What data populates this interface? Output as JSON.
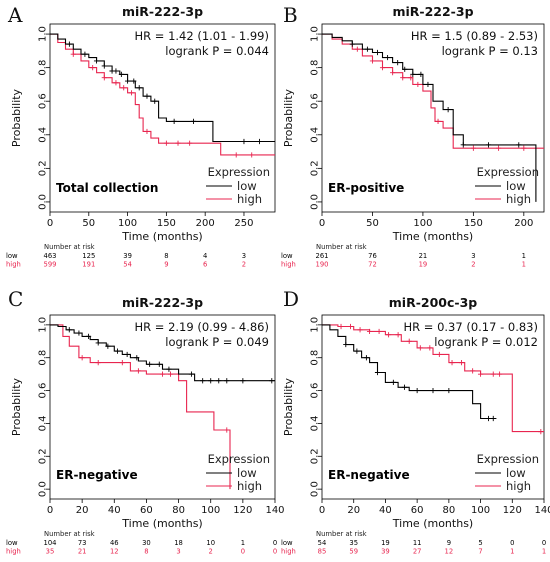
{
  "chart_data": [
    {
      "type": "line",
      "panel": "A",
      "title": "miR-222-3p",
      "hr_text": "HR = 1.42 (1.01 - 1.99)",
      "p_text": "logrank P = 0.044",
      "subset_label": "Total collection",
      "xlabel": "Time (months)",
      "ylabel": "Probability",
      "xlim": [
        0,
        290
      ],
      "ylim": [
        0,
        1
      ],
      "xticks": [
        0,
        50,
        100,
        150,
        200,
        250
      ],
      "yticks": [
        0.0,
        0.2,
        0.4,
        0.6,
        0.8,
        1.0
      ],
      "legend": {
        "title": "Expression",
        "position": "bottom-right"
      },
      "series": [
        {
          "name": "low",
          "color": "#000000",
          "points": [
            [
              0,
              1.0
            ],
            [
              10,
              0.97
            ],
            [
              20,
              0.94
            ],
            [
              30,
              0.91
            ],
            [
              40,
              0.88
            ],
            [
              50,
              0.86
            ],
            [
              60,
              0.84
            ],
            [
              70,
              0.81
            ],
            [
              80,
              0.78
            ],
            [
              90,
              0.76
            ],
            [
              100,
              0.72
            ],
            [
              110,
              0.68
            ],
            [
              120,
              0.63
            ],
            [
              130,
              0.6
            ],
            [
              140,
              0.5
            ],
            [
              150,
              0.48
            ],
            [
              210,
              0.48
            ],
            [
              210,
              0.36
            ],
            [
              290,
              0.36
            ]
          ],
          "censor_x": [
            25,
            45,
            60,
            70,
            80,
            85,
            92,
            100,
            108,
            115,
            125,
            135,
            160,
            185,
            250,
            270
          ]
        },
        {
          "name": "high",
          "color": "#e8254f",
          "points": [
            [
              0,
              1.0
            ],
            [
              10,
              0.95
            ],
            [
              20,
              0.91
            ],
            [
              30,
              0.88
            ],
            [
              40,
              0.84
            ],
            [
              50,
              0.8
            ],
            [
              60,
              0.77
            ],
            [
              70,
              0.74
            ],
            [
              80,
              0.71
            ],
            [
              90,
              0.68
            ],
            [
              100,
              0.65
            ],
            [
              110,
              0.58
            ],
            [
              115,
              0.5
            ],
            [
              120,
              0.42
            ],
            [
              130,
              0.38
            ],
            [
              140,
              0.35
            ],
            [
              200,
              0.35
            ],
            [
              220,
              0.28
            ],
            [
              290,
              0.28
            ]
          ],
          "censor_x": [
            30,
            55,
            70,
            85,
            95,
            105,
            125,
            150,
            165,
            180,
            240,
            260
          ]
        }
      ],
      "risk_table": {
        "header": "Number at risk",
        "times": [
          0,
          50,
          100,
          150,
          200,
          250
        ],
        "rows": [
          {
            "label": "low",
            "values": [
              463,
              125,
              39,
              8,
              4,
              3
            ]
          },
          {
            "label": "high",
            "values": [
              599,
              191,
              54,
              9,
              6,
              2
            ]
          }
        ]
      }
    },
    {
      "type": "line",
      "panel": "B",
      "title": "miR-222-3p",
      "hr_text": "HR = 1.5 (0.89 - 2.53)",
      "p_text": "logrank P = 0.13",
      "subset_label": "ER-positive",
      "xlabel": "Time (months)",
      "ylabel": "Probability",
      "xlim": [
        0,
        220
      ],
      "ylim": [
        0,
        1
      ],
      "xticks": [
        0,
        50,
        100,
        150,
        200
      ],
      "yticks": [
        0.0,
        0.2,
        0.4,
        0.6,
        0.8,
        1.0
      ],
      "legend": {
        "title": "Expression",
        "position": "bottom-right"
      },
      "series": [
        {
          "name": "low",
          "color": "#000000",
          "points": [
            [
              0,
              1.0
            ],
            [
              10,
              0.98
            ],
            [
              20,
              0.96
            ],
            [
              30,
              0.94
            ],
            [
              40,
              0.91
            ],
            [
              50,
              0.89
            ],
            [
              60,
              0.86
            ],
            [
              70,
              0.83
            ],
            [
              80,
              0.79
            ],
            [
              90,
              0.76
            ],
            [
              100,
              0.7
            ],
            [
              110,
              0.6
            ],
            [
              120,
              0.55
            ],
            [
              130,
              0.4
            ],
            [
              140,
              0.34
            ],
            [
              210,
              0.34
            ],
            [
              212,
              0.0
            ]
          ],
          "censor_x": [
            30,
            45,
            55,
            65,
            75,
            82,
            90,
            98,
            105,
            125,
            140,
            165,
            195
          ]
        },
        {
          "name": "high",
          "color": "#e8254f",
          "points": [
            [
              0,
              1.0
            ],
            [
              10,
              0.97
            ],
            [
              20,
              0.94
            ],
            [
              30,
              0.91
            ],
            [
              40,
              0.87
            ],
            [
              50,
              0.84
            ],
            [
              60,
              0.8
            ],
            [
              70,
              0.77
            ],
            [
              80,
              0.74
            ],
            [
              90,
              0.7
            ],
            [
              100,
              0.66
            ],
            [
              108,
              0.56
            ],
            [
              112,
              0.48
            ],
            [
              120,
              0.44
            ],
            [
              130,
              0.32
            ],
            [
              220,
              0.32
            ]
          ],
          "censor_x": [
            35,
            50,
            60,
            70,
            80,
            88,
            95,
            115,
            150,
            175,
            200
          ]
        }
      ],
      "risk_table": {
        "header": "Number at risk",
        "times": [
          0,
          50,
          100,
          150,
          200
        ],
        "rows": [
          {
            "label": "low",
            "values": [
              261,
              76,
              21,
              3,
              1
            ]
          },
          {
            "label": "high",
            "values": [
              190,
              72,
              19,
              2,
              1
            ]
          }
        ]
      }
    },
    {
      "type": "line",
      "panel": "C",
      "title": "miR-222-3p",
      "hr_text": "HR = 2.19 (0.99 - 4.86)",
      "p_text": "logrank P = 0.049",
      "subset_label": "ER-negative",
      "xlabel": "Time (months)",
      "ylabel": "Probability",
      "xlim": [
        0,
        140
      ],
      "ylim": [
        0,
        1
      ],
      "xticks": [
        0,
        20,
        40,
        60,
        80,
        100,
        120,
        140
      ],
      "yticks": [
        0.0,
        0.2,
        0.4,
        0.6,
        0.8,
        1.0
      ],
      "legend": {
        "title": "Expression",
        "position": "bottom-right"
      },
      "series": [
        {
          "name": "low",
          "color": "#000000",
          "points": [
            [
              0,
              1.0
            ],
            [
              5,
              0.99
            ],
            [
              10,
              0.97
            ],
            [
              15,
              0.95
            ],
            [
              20,
              0.93
            ],
            [
              25,
              0.91
            ],
            [
              30,
              0.89
            ],
            [
              35,
              0.87
            ],
            [
              40,
              0.84
            ],
            [
              45,
              0.82
            ],
            [
              50,
              0.8
            ],
            [
              55,
              0.78
            ],
            [
              60,
              0.76
            ],
            [
              70,
              0.73
            ],
            [
              80,
              0.7
            ],
            [
              90,
              0.66
            ],
            [
              140,
              0.66
            ]
          ],
          "censor_x": [
            12,
            18,
            24,
            30,
            36,
            42,
            48,
            54,
            62,
            68,
            74,
            88,
            95,
            100,
            105,
            110,
            120,
            138
          ]
        },
        {
          "name": "high",
          "color": "#e8254f",
          "points": [
            [
              0,
              1.0
            ],
            [
              8,
              0.93
            ],
            [
              12,
              0.87
            ],
            [
              18,
              0.8
            ],
            [
              25,
              0.77
            ],
            [
              40,
              0.77
            ],
            [
              50,
              0.72
            ],
            [
              60,
              0.7
            ],
            [
              80,
              0.66
            ],
            [
              85,
              0.47
            ],
            [
              100,
              0.47
            ],
            [
              102,
              0.36
            ],
            [
              108,
              0.36
            ],
            [
              112,
              0.0
            ]
          ],
          "censor_x": [
            20,
            30,
            45,
            55,
            70,
            75,
            110
          ]
        }
      ],
      "risk_table": {
        "header": "Number at risk",
        "times": [
          0,
          20,
          40,
          60,
          80,
          100,
          120,
          140
        ],
        "rows": [
          {
            "label": "low",
            "values": [
              104,
              73,
              46,
              30,
              18,
              10,
              1,
              0
            ]
          },
          {
            "label": "high",
            "values": [
              35,
              21,
              12,
              8,
              3,
              2,
              0,
              0
            ]
          }
        ]
      }
    },
    {
      "type": "line",
      "panel": "D",
      "title": "miR-200c-3p",
      "hr_text": "HR = 0.37 (0.17 - 0.83)",
      "p_text": "logrank P = 0.012",
      "subset_label": "ER-negative",
      "xlabel": "Time (months)",
      "ylabel": "Probability",
      "xlim": [
        0,
        140
      ],
      "ylim": [
        0,
        1
      ],
      "xticks": [
        0,
        20,
        40,
        60,
        80,
        100,
        120,
        140
      ],
      "yticks": [
        0.0,
        0.2,
        0.4,
        0.6,
        0.8,
        1.0
      ],
      "legend": {
        "title": "Expression",
        "position": "bottom-right"
      },
      "series": [
        {
          "name": "low",
          "color": "#000000",
          "points": [
            [
              0,
              1.0
            ],
            [
              5,
              0.97
            ],
            [
              10,
              0.93
            ],
            [
              15,
              0.88
            ],
            [
              20,
              0.84
            ],
            [
              25,
              0.8
            ],
            [
              30,
              0.77
            ],
            [
              35,
              0.71
            ],
            [
              40,
              0.65
            ],
            [
              48,
              0.62
            ],
            [
              55,
              0.6
            ],
            [
              85,
              0.6
            ],
            [
              95,
              0.52
            ],
            [
              100,
              0.43
            ],
            [
              110,
              0.43
            ]
          ],
          "censor_x": [
            15,
            22,
            28,
            35,
            45,
            52,
            60,
            70,
            80,
            105,
            108
          ]
        },
        {
          "name": "high",
          "color": "#e8254f",
          "points": [
            [
              0,
              1.0
            ],
            [
              10,
              0.99
            ],
            [
              20,
              0.97
            ],
            [
              30,
              0.96
            ],
            [
              40,
              0.94
            ],
            [
              50,
              0.9
            ],
            [
              60,
              0.86
            ],
            [
              70,
              0.82
            ],
            [
              80,
              0.77
            ],
            [
              90,
              0.72
            ],
            [
              100,
              0.7
            ],
            [
              115,
              0.7
            ],
            [
              120,
              0.35
            ],
            [
              140,
              0.35
            ]
          ],
          "censor_x": [
            12,
            18,
            24,
            30,
            36,
            42,
            48,
            55,
            62,
            68,
            74,
            82,
            88,
            95,
            100,
            108,
            112,
            138
          ]
        }
      ],
      "risk_table": {
        "header": "Number at risk",
        "times": [
          0,
          20,
          40,
          60,
          80,
          100,
          120,
          140
        ],
        "rows": [
          {
            "label": "low",
            "values": [
              54,
              35,
              19,
              11,
              9,
              5,
              0,
              0
            ]
          },
          {
            "label": "high",
            "values": [
              85,
              59,
              39,
              27,
              12,
              7,
              1,
              1
            ]
          }
        ]
      }
    }
  ]
}
